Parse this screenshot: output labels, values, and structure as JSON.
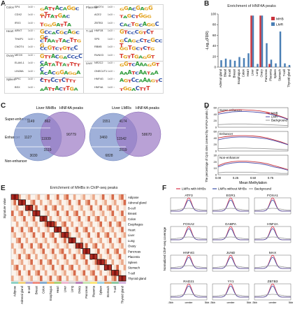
{
  "panels": {
    "A": {
      "letter": "A"
    },
    "B": {
      "letter": "B",
      "title": "Enrichment of HNF4A peaks"
    },
    "C": {
      "letter": "C"
    },
    "D": {
      "letter": "D"
    },
    "E": {
      "letter": "E",
      "title": "Enrichment of MHBs in ChIP-seq peaks"
    },
    "F": {
      "letter": "F"
    }
  },
  "motifs_left": [
    {
      "tissue": "Colon",
      "tf": "SP4",
      "p": "1x10⁻¹",
      "logo": "GATTACAGGCGT"
    },
    {
      "tissue": "",
      "tf": "CDX2",
      "p": "1x10⁻¹",
      "logo": "TTTATGAC"
    },
    {
      "tissue": "",
      "tf": "IRX3",
      "p": "1x10⁻¹",
      "logo": "TGGGATTA"
    },
    {
      "tissue": "Heart",
      "tf": "ARNT",
      "p": "1x10⁻¹",
      "logo": "GCCACGCAGCGC"
    },
    {
      "tissue": "",
      "tf": "THAP1",
      "p": "1x10⁻¹",
      "logo": "CTAATTACTTGG"
    },
    {
      "tissue": "",
      "tf": "CNOT4",
      "p": "1x10⁻¹",
      "logo": "CCGTCTGTCC"
    },
    {
      "tissue": "Ovary",
      "tf": "MEOX",
      "p": "1x10⁻¹",
      "logo": "GTTACGACCCCC"
    },
    {
      "tissue": "",
      "tf": "ELAVL1",
      "p": "1x10⁻¹",
      "logo": "AATATTATTTTC"
    },
    {
      "tissue": "",
      "tf": "LIN28A",
      "p": "1x10⁻¹",
      "logo": "ACACGGAGGAT"
    },
    {
      "tissue": "Spleen",
      "tf": "SPIC",
      "p": "1x10⁻¹",
      "logo": "CTTCCTCTTT"
    },
    {
      "tissue": "",
      "tf": "BSX",
      "p": "1x10⁻¹",
      "logo": "AATTACTTGA"
    }
  ],
  "motifs_right": [
    {
      "tissue": "Placenta",
      "tf": "CNOT4",
      "p": "1x10⁻¹",
      "logo": "GGACGAGG"
    },
    {
      "tissue": "",
      "tf": "ACE2",
      "p": "1x10⁻¹",
      "logo": "TAGCTGGG"
    },
    {
      "tissue": "",
      "tf": "ZBTB3",
      "p": "1x10⁻¹",
      "logo": "CACTGCAGGC"
    },
    {
      "tissue": "T cell",
      "tf": "HNF1B",
      "p": "1x10⁻¹",
      "logo": "GTCCCGTCT"
    },
    {
      "tissue": "",
      "tf": "SP5",
      "p": "1x10⁻¹",
      "logo": "GCAGCCTCGCCT"
    },
    {
      "tissue": "",
      "tf": "RBM5",
      "p": "1x10⁻¹",
      "logo": "GGTGCTCTG"
    },
    {
      "tissue": "",
      "tf": "RUNX3",
      "p": "1x10⁻¹",
      "logo": "TGTTGAGGT"
    },
    {
      "tissue": "Liver",
      "tf": "NR2C2",
      "p": "1x10⁻¹",
      "logo": "GGTCAAAGGT"
    },
    {
      "tissue": "",
      "tf": "ONECUT1",
      "p": "1x10⁻¹",
      "logo": "AAATCAATAA"
    },
    {
      "tissue": "",
      "tf": "HNF4G",
      "p": "1x10⁻¹",
      "logo": "AGTCCAAAGTC"
    },
    {
      "tissue": "",
      "tf": "HNF4A",
      "p": "1x10⁻¹",
      "logo": "TGGACTTT"
    }
  ],
  "chart_data": [
    {
      "type": "bar",
      "title": "Enrichment of HNF4A peaks",
      "ylabel": "-Log₁₀(FDR)",
      "ylim": [
        0,
        100
      ],
      "yticks": [
        0,
        20,
        40,
        60,
        80,
        100
      ],
      "categories": [
        "Adrenal gland",
        "Blood",
        "B-cell",
        "Breast",
        "Esophagus",
        "Colon",
        "Heart",
        "Liver",
        "Lung",
        "Ovary",
        "Pancreas",
        "Placenta",
        "Spleen",
        "Stomach",
        "T-cell",
        "Thyroid gland"
      ],
      "series": [
        {
          "name": "MHB",
          "color": "#c8323c",
          "values": [
            0,
            0,
            0,
            0,
            0,
            0,
            0,
            97,
            0,
            97,
            0,
            6,
            0,
            0,
            0,
            0
          ]
        },
        {
          "name": "LMR",
          "color": "#4a7fb5",
          "values": [
            13,
            16,
            14,
            12,
            19,
            17,
            26,
            97,
            6,
            97,
            45,
            14,
            7,
            67,
            7,
            4
          ]
        }
      ]
    },
    {
      "type": "line",
      "title": "",
      "ylabel": "The percentage of CpG sites covered by HNF4A peaks (%)",
      "xlabel": "Mean Methylation",
      "subplots": [
        {
          "label": "Super-enhancer",
          "ylim": [
            0,
            60
          ],
          "yticks": [
            0,
            20,
            40,
            60
          ]
        },
        {
          "label": "Enhancer",
          "ylim": [
            0,
            60
          ],
          "yticks": [
            0,
            20,
            40,
            60
          ]
        },
        {
          "label": "Non-enhancer",
          "ylim": [
            0,
            30
          ],
          "yticks": [
            0,
            10,
            20,
            30
          ]
        }
      ],
      "x": [
        0,
        0.1,
        0.2,
        0.3,
        0.4,
        0.5,
        0.6,
        0.7,
        0.8,
        0.9,
        1.0
      ],
      "xticks": [
        "0.00",
        "0.25",
        "0.50",
        "0.75"
      ],
      "series": [
        {
          "name": "MHB",
          "color": "#c8323c",
          "panels": [
            [
              45,
              50,
              53,
              54,
              53,
              52,
              50,
              46,
              40,
              33,
              25
            ],
            [
              40,
              44,
              46,
              47,
              47,
              46,
              44,
              40,
              34,
              28,
              20
            ],
            [
              14,
              18,
              20,
              21,
              21,
              20,
              19,
              17,
              14,
              11,
              8
            ]
          ]
        },
        {
          "name": "LMR",
          "color": "#4a4aa8",
          "panels": [
            [
              40,
              44,
              47,
              48,
              48,
              47,
              45,
              42,
              37,
              31,
              24
            ],
            [
              34,
              39,
              42,
              43,
              43,
              42,
              40,
              37,
              32,
              26,
              19
            ],
            [
              12,
              16,
              18,
              19,
              19,
              18,
              17,
              15,
              12,
              10,
              7
            ]
          ]
        },
        {
          "name": "Background",
          "color": "#9a9a9a",
          "panels": [
            [
              8,
              9,
              10,
              10,
              10,
              9,
              9,
              8,
              7,
              6,
              5
            ],
            [
              7,
              8,
              9,
              9,
              9,
              8,
              8,
              7,
              6,
              5,
              4
            ],
            [
              3,
              4,
              4,
              4,
              4,
              4,
              3,
              3,
              3,
              2,
              2
            ]
          ]
        }
      ]
    }
  ],
  "venn": {
    "left_title": "Liver MHBs",
    "mid_title": "HNF4A peaks",
    "right_title": "Liver LMRs",
    "right_title2": "HNF4A peaks",
    "row_labels": [
      "Super-enhancer",
      "Enhancer",
      "Non-enhancer"
    ],
    "left": {
      "a": "1149",
      "b": "862",
      "c": "1127",
      "d": "11939",
      "e": "90779",
      "f": "3030",
      "g": "1519"
    },
    "right": {
      "a": "1551",
      "b": "4174",
      "c": "3460",
      "d": "11542",
      "e": "58670",
      "f": "6828",
      "g": "2019"
    }
  },
  "heatmap": {
    "ylabel": "Signature value",
    "rows": [
      "Adipose",
      "Adrenal gland",
      "B-cell",
      "Breast",
      "Colon",
      "Esophagus",
      "Heart",
      "Liver",
      "Lung",
      "Ovary",
      "Pancreas",
      "Placenta",
      "Spleen",
      "Stomach",
      "T-cell",
      "Thyroid gland"
    ],
    "groups": [
      "Adipose",
      "Adrenal gland",
      "B-cell",
      "Breast",
      "Colon",
      "Esophagus",
      "Heart",
      "Liver",
      "Lung",
      "Ovary",
      "Pancreas",
      "Placenta",
      "Spleen",
      "Stomach",
      "T-cell",
      "Thyroid gland"
    ]
  },
  "chip": {
    "legend": [
      "LMRs with MHBs",
      "LMRs without MHBs",
      "Background"
    ],
    "colors": [
      "#d8324a",
      "#3c4fa8",
      "#9a9a9a"
    ],
    "ylabel": "Normalized ChIP-seq coverage",
    "xticks": [
      "-5kb",
      "center",
      "5kb"
    ],
    "tfs": [
      "ATF3",
      "EGR1",
      "FOXA1",
      "FOXA2",
      "GABPA",
      "HNF4A",
      "HNF4G",
      "JUND",
      "MAX",
      "RAD21",
      "YY1",
      "ZBTB3"
    ]
  }
}
